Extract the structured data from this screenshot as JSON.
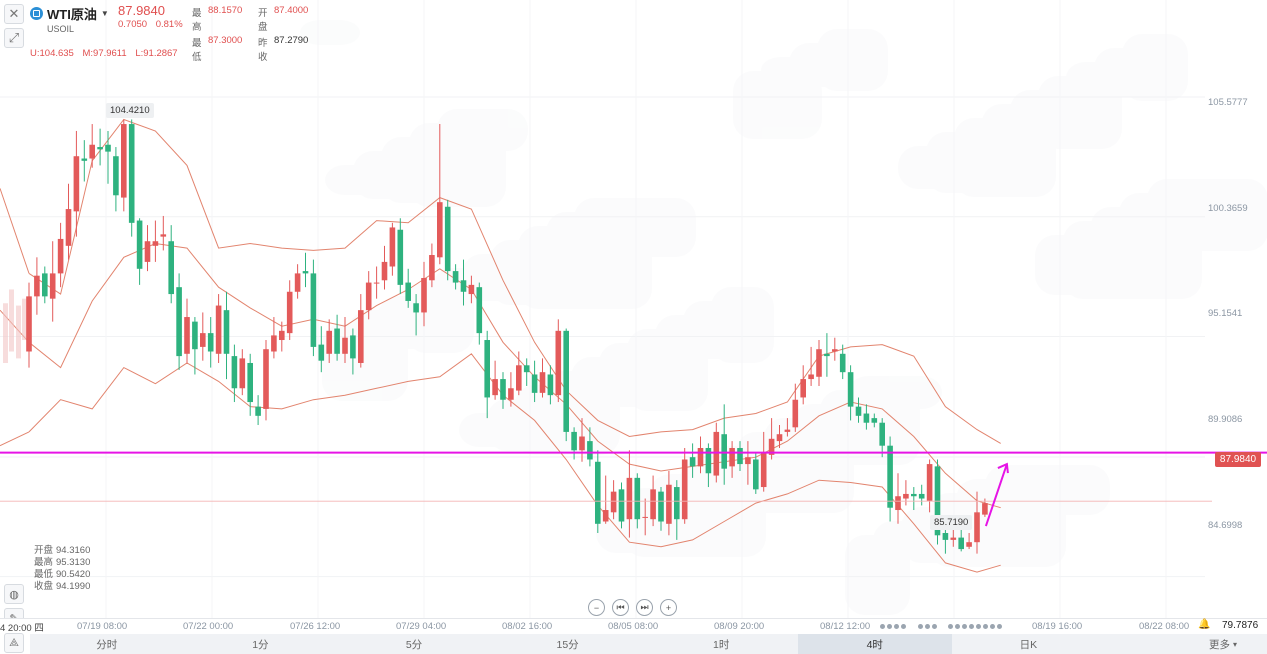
{
  "header": {
    "close_icon": "close-icon",
    "draw_icon": "pencil-icon",
    "symbol_name": "WTI原油",
    "symbol_code": "USOIL",
    "last_price": "87.9840",
    "change": "0.7050",
    "change_pct": "0.81%",
    "high_label": "最高",
    "high_value": "88.1570",
    "open_label": "开盘",
    "open_value": "87.4000",
    "low_label": "最低",
    "low_value": "87.3000",
    "prev_label": "昨收",
    "prev_value": "87.2790",
    "boll_upper": "U:104.635",
    "boll_mid": "M:97.9611",
    "boll_lower": "L:91.2867"
  },
  "price_axis": {
    "labels": [
      "105.5777",
      "100.3659",
      "95.1541",
      "89.9086",
      "84.6998"
    ],
    "current_price_badge": "87.9840",
    "high_marker": "104.4210",
    "low_marker": "85.7190"
  },
  "hover_info": {
    "open_label": "开盘",
    "open_value": "94.3160",
    "high_label": "最高",
    "high_value": "95.3130",
    "low_label": "最低",
    "low_value": "90.5420",
    "close_label": "收盘",
    "close_value": "94.1990"
  },
  "time_axis": {
    "current": "4 20:00 四",
    "labels": [
      "07/19 08:00",
      "07/22 00:00",
      "07/26 12:00",
      "07/29 04:00",
      "08/02 16:00",
      "08/05 08:00",
      "08/09 20:00",
      "08/12 12:00",
      "08/19 16:00",
      "08/22 08:00"
    ],
    "last_value": "79.7876"
  },
  "tabs": [
    "分时",
    "1分",
    "5分",
    "15分",
    "1时",
    "4时",
    "日K",
    "更多"
  ],
  "active_tab": "4时",
  "colors": {
    "up": "#e35a5a",
    "down": "#2eb27f",
    "bollinger": "#e2846e",
    "horizontal_line": "#e614e6",
    "arrow": "#e614e6"
  },
  "chart_data": {
    "type": "candlestick",
    "symbol": "USOIL",
    "interval": "4时",
    "ylim": [
      82.9,
      109.8
    ],
    "y_ticks": [
      105.5777,
      100.3659,
      95.1541,
      89.9086,
      84.6998
    ],
    "current_price": 87.984,
    "horizontal_line": 90.1,
    "candles": [
      [
        94.5,
        96.9,
        97.5,
        93.8
      ],
      [
        96.9,
        97.8,
        98.6,
        96.1
      ],
      [
        97.9,
        96.9,
        98.2,
        96.6
      ],
      [
        96.8,
        97.9,
        99.3,
        95.8
      ],
      [
        97.9,
        99.4,
        100.1,
        97.3
      ],
      [
        99.1,
        100.7,
        101.8,
        98.5
      ],
      [
        100.6,
        103.0,
        104.1,
        99.5
      ],
      [
        102.9,
        102.8,
        103.7,
        101.9
      ],
      [
        102.9,
        103.5,
        104.4,
        102.5
      ],
      [
        103.4,
        103.3,
        104.2,
        102.6
      ],
      [
        103.5,
        103.2,
        104.1,
        101.8
      ],
      [
        103.0,
        101.3,
        103.4,
        100.6
      ],
      [
        101.2,
        104.4,
        104.6,
        100.6
      ],
      [
        104.4,
        100.1,
        104.6,
        99.5
      ],
      [
        100.2,
        98.1,
        100.3,
        97.4
      ],
      [
        98.4,
        99.3,
        100.0,
        98.0
      ],
      [
        99.1,
        99.3,
        100.2,
        98.4
      ],
      [
        99.5,
        99.6,
        100.4,
        98.9
      ],
      [
        99.3,
        97.0,
        100.0,
        96.6
      ],
      [
        97.3,
        94.3,
        97.9,
        93.7
      ],
      [
        94.4,
        96.0,
        96.8,
        94.0
      ],
      [
        95.8,
        94.6,
        96.0,
        93.5
      ],
      [
        94.7,
        95.3,
        96.2,
        94.1
      ],
      [
        95.3,
        94.5,
        96.0,
        93.8
      ],
      [
        94.4,
        96.5,
        97.0,
        94.0
      ],
      [
        96.3,
        94.4,
        97.1,
        93.3
      ],
      [
        94.3,
        92.9,
        94.8,
        92.3
      ],
      [
        92.9,
        94.2,
        94.6,
        92.6
      ],
      [
        94.0,
        92.3,
        94.4,
        91.7
      ],
      [
        92.1,
        91.7,
        92.6,
        91.3
      ],
      [
        92.0,
        94.6,
        95.0,
        91.5
      ],
      [
        94.5,
        95.2,
        96.0,
        94.2
      ],
      [
        95.0,
        95.4,
        95.8,
        94.5
      ],
      [
        95.3,
        97.1,
        97.6,
        95.0
      ],
      [
        97.1,
        97.9,
        98.3,
        96.8
      ],
      [
        98.0,
        97.9,
        98.8,
        97.3
      ],
      [
        97.9,
        94.7,
        98.5,
        94.3
      ],
      [
        94.8,
        94.1,
        95.6,
        93.6
      ],
      [
        94.4,
        95.4,
        95.9,
        94.0
      ],
      [
        95.5,
        94.4,
        96.1,
        94.1
      ],
      [
        94.4,
        95.1,
        96.0,
        94.0
      ],
      [
        95.2,
        94.2,
        95.5,
        93.5
      ],
      [
        94.0,
        96.3,
        97.0,
        93.8
      ],
      [
        96.3,
        97.5,
        98.0,
        95.9
      ],
      [
        97.5,
        97.5,
        98.2,
        96.8
      ],
      [
        97.6,
        98.4,
        99.1,
        97.2
      ],
      [
        98.2,
        99.9,
        100.1,
        97.8
      ],
      [
        99.8,
        97.4,
        100.3,
        97.0
      ],
      [
        97.5,
        96.7,
        98.1,
        96.4
      ],
      [
        96.6,
        96.2,
        97.0,
        95.2
      ],
      [
        96.2,
        97.7,
        98.4,
        95.6
      ],
      [
        97.6,
        98.7,
        99.2,
        97.3
      ],
      [
        98.6,
        101.0,
        104.4,
        98.3
      ],
      [
        100.8,
        98.0,
        101.1,
        97.6
      ],
      [
        98.0,
        97.5,
        98.3,
        97.2
      ],
      [
        97.6,
        97.1,
        98.5,
        96.5
      ],
      [
        97.0,
        97.4,
        97.8,
        96.6
      ],
      [
        97.3,
        95.3,
        97.5,
        94.8
      ],
      [
        95.0,
        92.5,
        95.4,
        91.6
      ],
      [
        92.6,
        93.3,
        94.1,
        92.4
      ],
      [
        93.3,
        92.4,
        93.6,
        92.0
      ],
      [
        92.4,
        92.9,
        93.6,
        92.1
      ],
      [
        92.8,
        93.9,
        94.5,
        92.6
      ],
      [
        93.9,
        93.6,
        94.2,
        93.0
      ],
      [
        93.5,
        92.7,
        94.1,
        92.3
      ],
      [
        92.7,
        93.6,
        94.2,
        92.5
      ],
      [
        93.5,
        92.6,
        93.9,
        92.2
      ],
      [
        92.6,
        95.4,
        95.9,
        92.3
      ],
      [
        95.4,
        91.0,
        95.5,
        90.6
      ],
      [
        91.0,
        90.2,
        91.2,
        89.8
      ],
      [
        90.2,
        90.8,
        91.6,
        89.7
      ],
      [
        90.6,
        89.8,
        91.2,
        89.5
      ],
      [
        89.7,
        87.0,
        90.2,
        86.6
      ],
      [
        87.1,
        87.6,
        89.1,
        87.0
      ],
      [
        87.5,
        88.4,
        88.9,
        87.2
      ],
      [
        88.5,
        87.1,
        88.8,
        86.8
      ],
      [
        87.2,
        89.0,
        90.2,
        86.4
      ],
      [
        89.0,
        87.2,
        89.2,
        86.8
      ],
      [
        87.3,
        87.3,
        88.1,
        86.5
      ],
      [
        87.2,
        88.5,
        89.1,
        86.9
      ],
      [
        88.4,
        87.1,
        88.6,
        86.7
      ],
      [
        87.0,
        88.7,
        89.3,
        86.5
      ],
      [
        88.6,
        87.2,
        88.9,
        86.3
      ],
      [
        87.2,
        89.8,
        90.3,
        87.0
      ],
      [
        89.9,
        89.5,
        90.5,
        89.0
      ],
      [
        89.5,
        90.3,
        90.8,
        89.2
      ],
      [
        90.3,
        89.2,
        90.5,
        88.6
      ],
      [
        89.1,
        91.0,
        91.4,
        88.8
      ],
      [
        90.9,
        89.4,
        92.2,
        88.7
      ],
      [
        89.5,
        90.3,
        90.6,
        89.0
      ],
      [
        90.3,
        89.6,
        90.6,
        89.3
      ],
      [
        89.6,
        89.9,
        90.6,
        88.7
      ],
      [
        89.8,
        88.5,
        90.1,
        88.3
      ],
      [
        88.6,
        90.1,
        91.0,
        88.4
      ],
      [
        90.0,
        90.7,
        91.6,
        89.8
      ],
      [
        90.6,
        90.9,
        91.3,
        90.3
      ],
      [
        91.0,
        91.1,
        91.6,
        90.8
      ],
      [
        91.2,
        92.4,
        93.1,
        91.0
      ],
      [
        92.5,
        93.3,
        93.9,
        92.2
      ],
      [
        93.3,
        93.5,
        94.7,
        93.0
      ],
      [
        93.4,
        94.6,
        95.0,
        93.0
      ],
      [
        94.4,
        94.3,
        95.3,
        93.4
      ],
      [
        94.5,
        94.6,
        95.1,
        94.1
      ],
      [
        94.4,
        93.6,
        94.8,
        93.3
      ],
      [
        93.6,
        92.1,
        93.9,
        91.5
      ],
      [
        92.1,
        91.7,
        92.5,
        91.4
      ],
      [
        91.8,
        91.4,
        92.2,
        91.1
      ],
      [
        91.6,
        91.4,
        91.8,
        91.2
      ],
      [
        91.4,
        90.4,
        91.6,
        89.9
      ],
      [
        90.4,
        87.7,
        90.8,
        87.1
      ],
      [
        87.6,
        88.2,
        89.2,
        87.0
      ],
      [
        88.1,
        88.3,
        88.9,
        87.8
      ],
      [
        88.3,
        88.2,
        88.6,
        87.6
      ],
      [
        88.3,
        88.1,
        88.7,
        87.8
      ],
      [
        88.0,
        89.6,
        89.8,
        87.5
      ],
      [
        89.5,
        86.5,
        89.8,
        86.1
      ],
      [
        86.6,
        86.3,
        86.9,
        85.7
      ],
      [
        86.3,
        86.4,
        87.3,
        86.0
      ],
      [
        86.4,
        85.9,
        86.8,
        85.8
      ],
      [
        86.0,
        86.2,
        86.6,
        85.9
      ],
      [
        86.2,
        87.5,
        88.4,
        85.7
      ],
      [
        87.4,
        87.9,
        88.1,
        87.3
      ]
    ],
    "bollinger_upper": [
      [
        0,
        97.9
      ],
      [
        4,
        97.0
      ],
      [
        8,
        102.8
      ],
      [
        12,
        104.6
      ],
      [
        16,
        104.1
      ],
      [
        20,
        102.6
      ],
      [
        24,
        99.0
      ],
      [
        28,
        99.2
      ],
      [
        32,
        99.0
      ],
      [
        36,
        98.9
      ],
      [
        40,
        99.0
      ],
      [
        44,
        100.2
      ],
      [
        48,
        100.1
      ],
      [
        52,
        101.2
      ],
      [
        56,
        100.7
      ],
      [
        60,
        97.6
      ],
      [
        64,
        94.9
      ],
      [
        68,
        92.8
      ],
      [
        72,
        91.5
      ],
      [
        76,
        90.8
      ],
      [
        80,
        91.0
      ],
      [
        84,
        91.1
      ],
      [
        88,
        91.6
      ],
      [
        92,
        91.8
      ],
      [
        96,
        92.3
      ],
      [
        100,
        94.3
      ],
      [
        104,
        94.7
      ],
      [
        108,
        94.8
      ],
      [
        112,
        94.3
      ],
      [
        116,
        92.1
      ],
      [
        120,
        91.1
      ],
      [
        123,
        90.5
      ]
    ],
    "bollinger_mid": [
      [
        0,
        94.9
      ],
      [
        4,
        93.8
      ],
      [
        8,
        96.7
      ],
      [
        12,
        98.6
      ],
      [
        16,
        99.2
      ],
      [
        20,
        99.0
      ],
      [
        24,
        97.3
      ],
      [
        28,
        96.4
      ],
      [
        32,
        95.6
      ],
      [
        36,
        95.9
      ],
      [
        40,
        95.6
      ],
      [
        44,
        96.5
      ],
      [
        48,
        97.2
      ],
      [
        52,
        98.1
      ],
      [
        56,
        97.2
      ],
      [
        60,
        94.9
      ],
      [
        64,
        93.4
      ],
      [
        68,
        92.2
      ],
      [
        72,
        90.6
      ],
      [
        76,
        89.6
      ],
      [
        80,
        89.3
      ],
      [
        84,
        89.5
      ],
      [
        88,
        89.7
      ],
      [
        92,
        89.9
      ],
      [
        96,
        90.6
      ],
      [
        100,
        91.7
      ],
      [
        104,
        92.3
      ],
      [
        108,
        92.0
      ],
      [
        112,
        90.8
      ],
      [
        116,
        89.2
      ],
      [
        120,
        88.0
      ],
      [
        123,
        87.7
      ]
    ],
    "bollinger_lower": [
      [
        0,
        91.0
      ],
      [
        4,
        92.4
      ],
      [
        8,
        92.0
      ],
      [
        12,
        93.8
      ],
      [
        16,
        93.1
      ],
      [
        20,
        94.0
      ],
      [
        24,
        93.2
      ],
      [
        28,
        92.1
      ],
      [
        32,
        92.0
      ],
      [
        36,
        92.4
      ],
      [
        40,
        92.6
      ],
      [
        44,
        92.9
      ],
      [
        48,
        93.2
      ],
      [
        52,
        93.4
      ],
      [
        56,
        94.4
      ],
      [
        60,
        92.6
      ],
      [
        64,
        91.5
      ],
      [
        68,
        89.8
      ],
      [
        72,
        87.8
      ],
      [
        76,
        86.2
      ],
      [
        80,
        86.0
      ],
      [
        84,
        86.3
      ],
      [
        88,
        87.1
      ],
      [
        92,
        87.9
      ],
      [
        96,
        88.3
      ],
      [
        100,
        88.9
      ],
      [
        104,
        88.8
      ],
      [
        108,
        88.6
      ],
      [
        112,
        87.0
      ],
      [
        116,
        85.3
      ],
      [
        120,
        84.9
      ],
      [
        123,
        85.2
      ]
    ]
  }
}
